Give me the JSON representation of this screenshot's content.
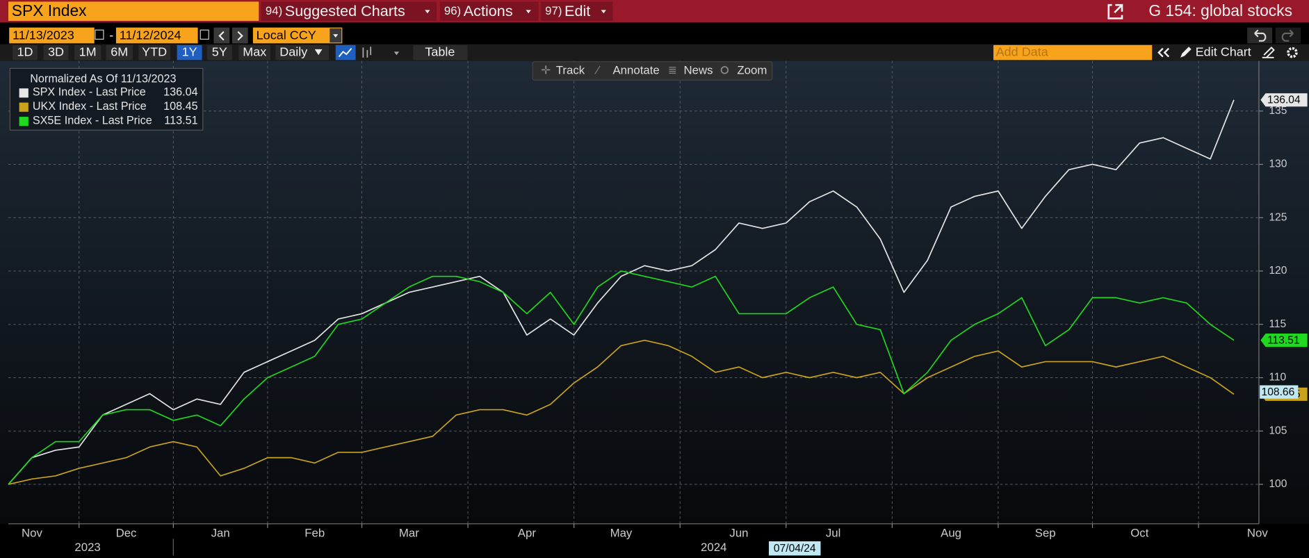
{
  "ui": {
    "ticker": "SPX Index",
    "menu": [
      {
        "num": "94)",
        "label": "Suggested Charts"
      },
      {
        "num": "96)",
        "label": "Actions"
      },
      {
        "num": "97)",
        "label": "Edit"
      }
    ],
    "launchpad": "G 154: global stocks",
    "start_date": "11/13/2023",
    "end_date": "11/12/2024",
    "currency": "Local CCY",
    "periods": [
      "1D",
      "3D",
      "1M",
      "6M",
      "YTD",
      "1Y",
      "5Y",
      "Max"
    ],
    "selected_period": "1Y",
    "frequency": "Daily",
    "table_button": "Table",
    "add_data_placeholder": "Add Data",
    "edit_chart": "Edit Chart",
    "tools": [
      "Track",
      "Annotate",
      "News",
      "Zoom"
    ]
  },
  "chart_data": {
    "type": "line",
    "legend_title": "Normalized As Of 11/13/2023",
    "categories": [
      null,
      "Nov",
      null,
      null,
      null,
      "Dec",
      null,
      null,
      null,
      "Jan",
      null,
      null,
      null,
      "Feb",
      null,
      null,
      null,
      "Mar",
      null,
      null,
      null,
      null,
      "Apr",
      null,
      null,
      null,
      "May",
      null,
      null,
      null,
      null,
      "Jun",
      null,
      null,
      null,
      "Jul",
      null,
      null,
      null,
      null,
      "Aug",
      null,
      null,
      null,
      "Sep",
      null,
      null,
      null,
      "Oct",
      null,
      null,
      null,
      null,
      "Nov"
    ],
    "series": [
      {
        "name": "SPX Index - Last Price",
        "color": "#e6e6e6",
        "values": [
          100,
          102.5,
          103.2,
          103.5,
          106.5,
          107.5,
          108.5,
          107,
          108,
          107.5,
          110.5,
          111.5,
          112.5,
          113.5,
          115.5,
          116,
          117,
          118,
          118.5,
          119,
          119.5,
          118,
          114,
          115.5,
          114,
          117,
          119.5,
          120.5,
          120,
          120.5,
          122,
          124.5,
          124,
          124.5,
          126.5,
          127.5,
          126,
          123,
          118,
          121,
          126,
          127,
          127.5,
          124,
          127,
          129.5,
          130,
          129.5,
          132,
          132.5,
          131.5,
          130.5,
          136.04,
          null
        ]
      },
      {
        "name": "UKX Index - Last Price",
        "color": "#c9a31b",
        "values": [
          100,
          100.5,
          100.8,
          101.5,
          102,
          102.5,
          103.5,
          104,
          103.5,
          100.8,
          101.5,
          102.5,
          102.5,
          102,
          103,
          103,
          103.5,
          104,
          104.5,
          106.5,
          107,
          107,
          106.5,
          107.5,
          109.5,
          111,
          113,
          113.5,
          113,
          112,
          110.5,
          111,
          110,
          110.5,
          110,
          110.5,
          110,
          110.5,
          108.5,
          110,
          111,
          112,
          112.5,
          111,
          111.5,
          111.5,
          111.5,
          111,
          111.5,
          112,
          111,
          110,
          108.45,
          null
        ]
      },
      {
        "name": "SX5E Index - Last Price",
        "color": "#1fd81f",
        "values": [
          100,
          102.5,
          104,
          104,
          106.5,
          107,
          107,
          106,
          106.5,
          105.5,
          108,
          110,
          111,
          112,
          115,
          115.5,
          117,
          118.5,
          119.5,
          119.5,
          119,
          118,
          116,
          118,
          115,
          118.5,
          120,
          119.5,
          119,
          118.5,
          119.5,
          116,
          116,
          116,
          117.5,
          118.5,
          115,
          114.5,
          108.5,
          110.5,
          113.5,
          115,
          116,
          117.5,
          113,
          114.5,
          117.5,
          117.5,
          117,
          117.5,
          117,
          115,
          113.51,
          null
        ]
      }
    ],
    "ylim": [
      96.3,
      139.7
    ],
    "yticks": [
      100,
      105,
      110,
      115,
      120,
      125,
      130,
      135
    ],
    "grid": true,
    "year_labels": [
      "2023",
      "2024"
    ],
    "cursor_value": 108.66,
    "cursor_date": "07/04/24"
  }
}
